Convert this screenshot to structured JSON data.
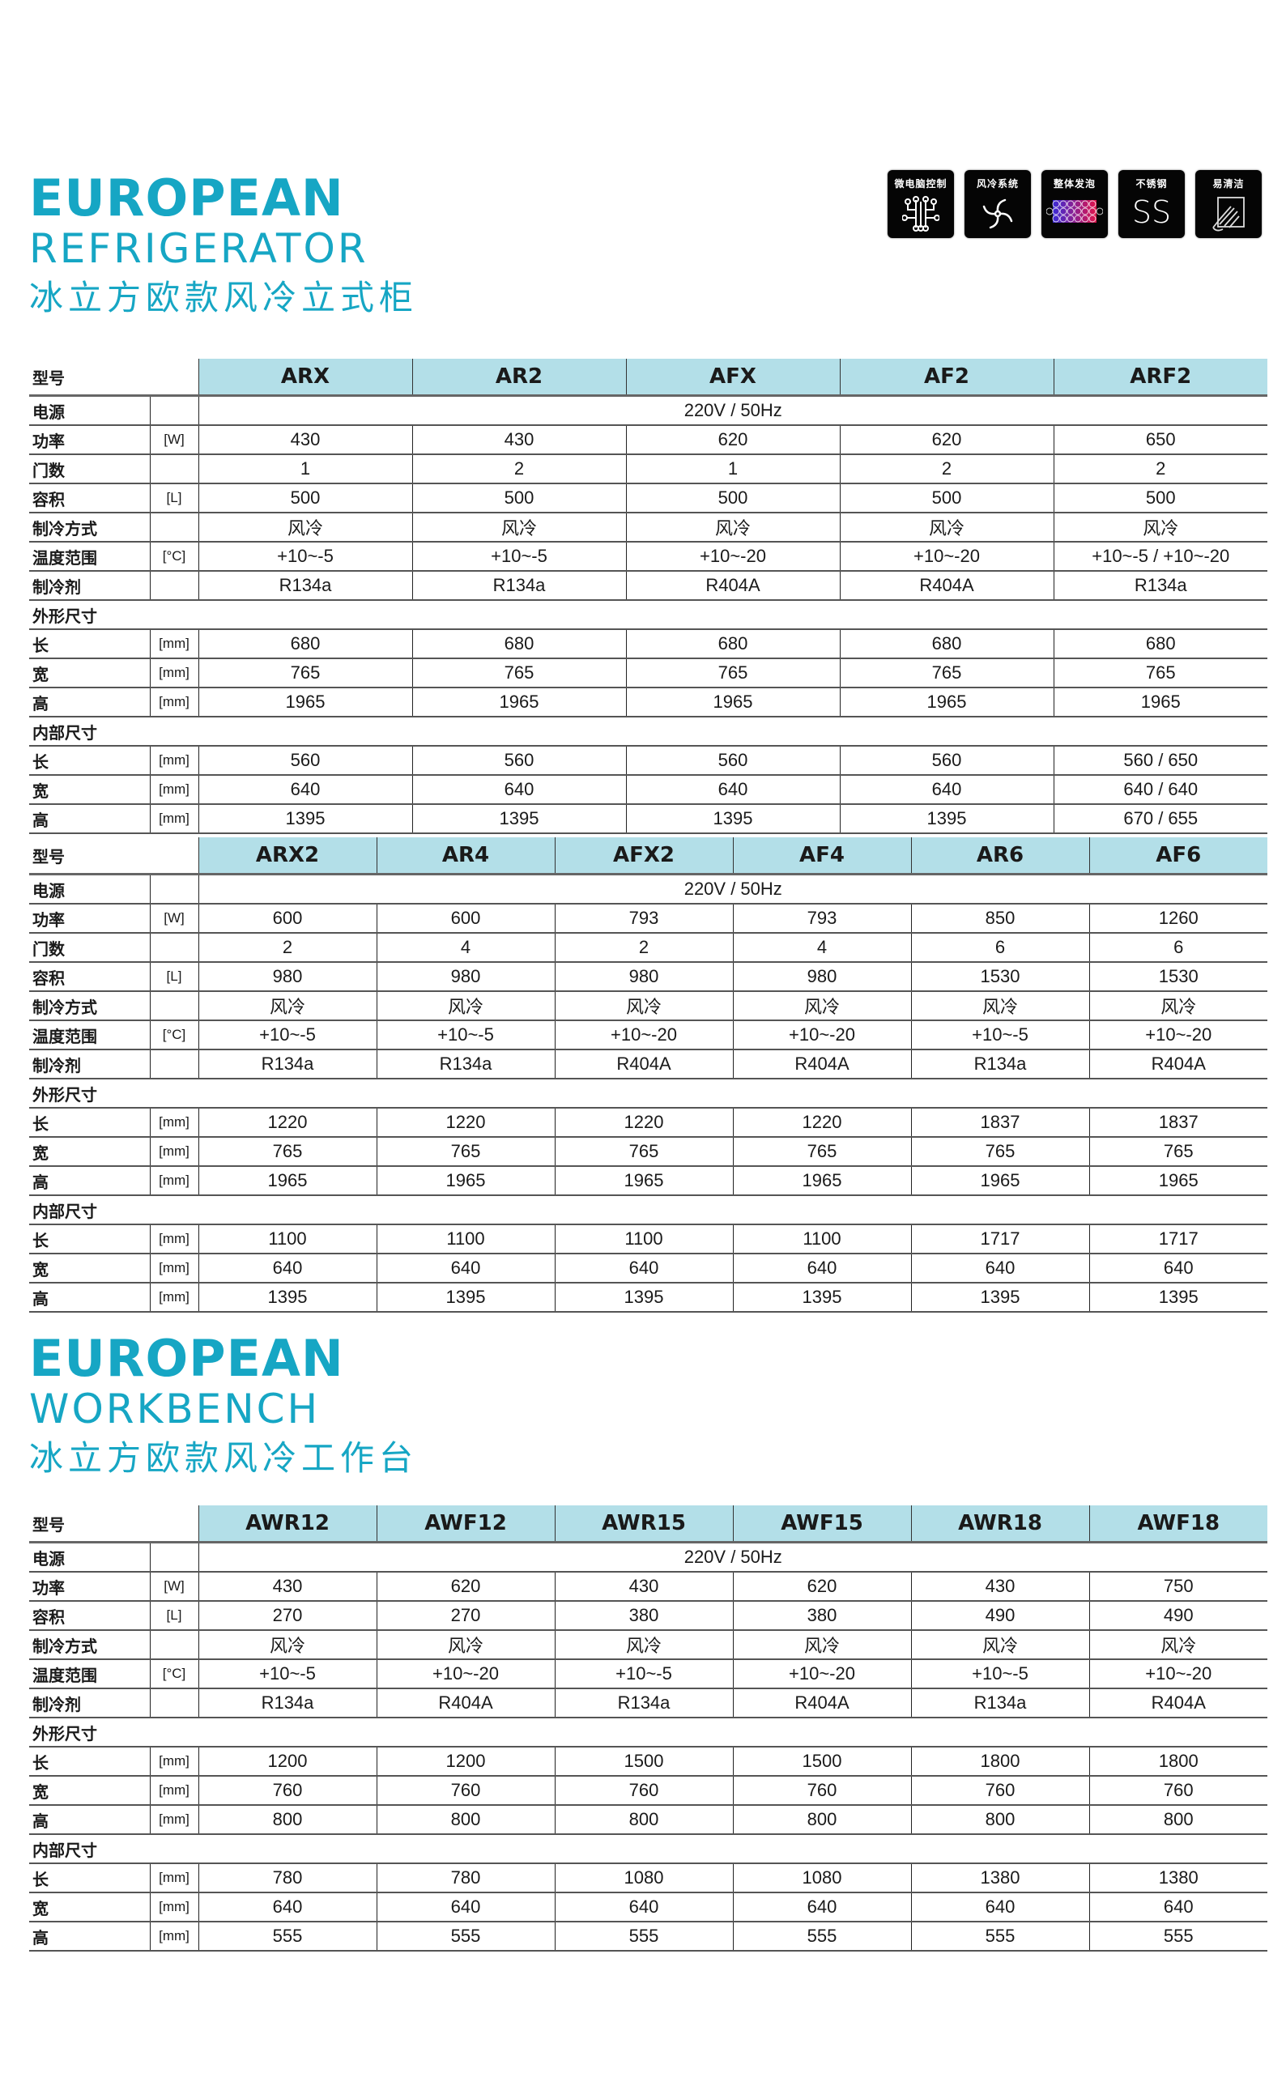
{
  "section1": {
    "title_en_1": "EUROPEAN",
    "title_en_2": "REFRIGERATOR",
    "title_cn": "冰立方欧款风冷立式柜"
  },
  "section2": {
    "title_en_1": "EUROPEAN",
    "title_en_2": "WORKBENCH",
    "title_cn": "冰立方欧款风冷工作台"
  },
  "feature_icons": [
    {
      "label": "微电脑控制",
      "icon": "circuit-icon"
    },
    {
      "label": "风冷系统",
      "icon": "fan-icon"
    },
    {
      "label": "整体发泡",
      "icon": "foam-bubbles-icon",
      "colors": [
        "#3a2bd6",
        "#e0144a"
      ]
    },
    {
      "label": "不锈钢",
      "icon": "stainless-steel-icon",
      "text": "SS"
    },
    {
      "label": "易清洁",
      "icon": "hand-wipe-icon"
    }
  ],
  "header_color": "#b3dfe8",
  "title_color": "#16a6c4",
  "tables": [
    {
      "model_label": "型号",
      "models": [
        "ARX",
        "AR2",
        "AFX",
        "AF2",
        "ARF2"
      ],
      "power_supply": {
        "label": "电源",
        "value": "220V / 50Hz"
      },
      "rows": [
        {
          "label": "功率",
          "unit": "[W]",
          "values": [
            "430",
            "430",
            "620",
            "620",
            "650"
          ]
        },
        {
          "label": "门数",
          "unit": "",
          "values": [
            "1",
            "2",
            "1",
            "2",
            "2"
          ]
        },
        {
          "label": "容积",
          "unit": "[L]",
          "values": [
            "500",
            "500",
            "500",
            "500",
            "500"
          ]
        },
        {
          "label": "制冷方式",
          "unit": "",
          "values": [
            "风冷",
            "风冷",
            "风冷",
            "风冷",
            "风冷"
          ]
        },
        {
          "label": "温度范围",
          "unit": "[°C]",
          "values": [
            "+10~-5",
            "+10~-5",
            "+10~-20",
            "+10~-20",
            "+10~-5 / +10~-20"
          ]
        },
        {
          "label": "制冷剂",
          "unit": "",
          "values": [
            "R134a",
            "R134a",
            "R404A",
            "R404A",
            "R134a"
          ]
        },
        {
          "section": "外形尺寸"
        },
        {
          "label": "长",
          "unit": "[mm]",
          "values": [
            "680",
            "680",
            "680",
            "680",
            "680"
          ]
        },
        {
          "label": "宽",
          "unit": "[mm]",
          "values": [
            "765",
            "765",
            "765",
            "765",
            "765"
          ]
        },
        {
          "label": "高",
          "unit": "[mm]",
          "values": [
            "1965",
            "1965",
            "1965",
            "1965",
            "1965"
          ]
        },
        {
          "section": "内部尺寸"
        },
        {
          "label": "长",
          "unit": "[mm]",
          "values": [
            "560",
            "560",
            "560",
            "560",
            "560 / 650"
          ]
        },
        {
          "label": "宽",
          "unit": "[mm]",
          "values": [
            "640",
            "640",
            "640",
            "640",
            "640 / 640"
          ]
        },
        {
          "label": "高",
          "unit": "[mm]",
          "values": [
            "1395",
            "1395",
            "1395",
            "1395",
            "670 / 655"
          ]
        }
      ]
    },
    {
      "model_label": "型号",
      "models": [
        "ARX2",
        "AR4",
        "AFX2",
        "AF4",
        "AR6",
        "AF6"
      ],
      "power_supply": {
        "label": "电源",
        "value": "220V / 50Hz"
      },
      "rows": [
        {
          "label": "功率",
          "unit": "[W]",
          "values": [
            "600",
            "600",
            "793",
            "793",
            "850",
            "1260"
          ]
        },
        {
          "label": "门数",
          "unit": "",
          "values": [
            "2",
            "4",
            "2",
            "4",
            "6",
            "6"
          ]
        },
        {
          "label": "容积",
          "unit": "[L]",
          "values": [
            "980",
            "980",
            "980",
            "980",
            "1530",
            "1530"
          ]
        },
        {
          "label": "制冷方式",
          "unit": "",
          "values": [
            "风冷",
            "风冷",
            "风冷",
            "风冷",
            "风冷",
            "风冷"
          ]
        },
        {
          "label": "温度范围",
          "unit": "[°C]",
          "values": [
            "+10~-5",
            "+10~-5",
            "+10~-20",
            "+10~-20",
            "+10~-5",
            "+10~-20"
          ]
        },
        {
          "label": "制冷剂",
          "unit": "",
          "values": [
            "R134a",
            "R134a",
            "R404A",
            "R404A",
            "R134a",
            "R404A"
          ]
        },
        {
          "section": "外形尺寸"
        },
        {
          "label": "长",
          "unit": "[mm]",
          "values": [
            "1220",
            "1220",
            "1220",
            "1220",
            "1837",
            "1837"
          ]
        },
        {
          "label": "宽",
          "unit": "[mm]",
          "values": [
            "765",
            "765",
            "765",
            "765",
            "765",
            "765"
          ]
        },
        {
          "label": "高",
          "unit": "[mm]",
          "values": [
            "1965",
            "1965",
            "1965",
            "1965",
            "1965",
            "1965"
          ]
        },
        {
          "section": "内部尺寸"
        },
        {
          "label": "长",
          "unit": "[mm]",
          "values": [
            "1100",
            "1100",
            "1100",
            "1100",
            "1717",
            "1717"
          ]
        },
        {
          "label": "宽",
          "unit": "[mm]",
          "values": [
            "640",
            "640",
            "640",
            "640",
            "640",
            "640"
          ]
        },
        {
          "label": "高",
          "unit": "[mm]",
          "values": [
            "1395",
            "1395",
            "1395",
            "1395",
            "1395",
            "1395"
          ]
        }
      ]
    },
    {
      "model_label": "型号",
      "models": [
        "AWR12",
        "AWF12",
        "AWR15",
        "AWF15",
        "AWR18",
        "AWF18"
      ],
      "power_supply": {
        "label": "电源",
        "value": "220V / 50Hz"
      },
      "rows": [
        {
          "label": "功率",
          "unit": "[W]",
          "values": [
            "430",
            "620",
            "430",
            "620",
            "430",
            "750"
          ]
        },
        {
          "label": "容积",
          "unit": "[L]",
          "values": [
            "270",
            "270",
            "380",
            "380",
            "490",
            "490"
          ]
        },
        {
          "label": "制冷方式",
          "unit": "",
          "values": [
            "风冷",
            "风冷",
            "风冷",
            "风冷",
            "风冷",
            "风冷"
          ]
        },
        {
          "label": "温度范围",
          "unit": "[°C]",
          "values": [
            "+10~-5",
            "+10~-20",
            "+10~-5",
            "+10~-20",
            "+10~-5",
            "+10~-20"
          ]
        },
        {
          "label": "制冷剂",
          "unit": "",
          "values": [
            "R134a",
            "R404A",
            "R134a",
            "R404A",
            "R134a",
            "R404A"
          ]
        },
        {
          "section": "外形尺寸"
        },
        {
          "label": "长",
          "unit": "[mm]",
          "values": [
            "1200",
            "1200",
            "1500",
            "1500",
            "1800",
            "1800"
          ]
        },
        {
          "label": "宽",
          "unit": "[mm]",
          "values": [
            "760",
            "760",
            "760",
            "760",
            "760",
            "760"
          ]
        },
        {
          "label": "高",
          "unit": "[mm]",
          "values": [
            "800",
            "800",
            "800",
            "800",
            "800",
            "800"
          ]
        },
        {
          "section": "内部尺寸"
        },
        {
          "label": "长",
          "unit": "[mm]",
          "values": [
            "780",
            "780",
            "1080",
            "1080",
            "1380",
            "1380"
          ]
        },
        {
          "label": "宽",
          "unit": "[mm]",
          "values": [
            "640",
            "640",
            "640",
            "640",
            "640",
            "640"
          ]
        },
        {
          "label": "高",
          "unit": "[mm]",
          "values": [
            "555",
            "555",
            "555",
            "555",
            "555",
            "555"
          ]
        }
      ]
    }
  ]
}
